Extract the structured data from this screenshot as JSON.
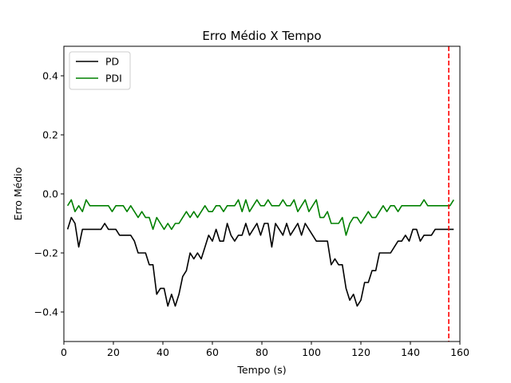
{
  "chart_data": {
    "type": "line",
    "title": "Erro Médio X Tempo",
    "xlabel": "Tempo (s)",
    "ylabel": "Erro Médio",
    "xlim": [
      0,
      160
    ],
    "ylim": [
      -0.5,
      0.5
    ],
    "xticks": [
      0,
      20,
      40,
      60,
      80,
      100,
      120,
      140,
      160
    ],
    "yticks": [
      -0.4,
      -0.2,
      0.0,
      0.2,
      0.4
    ],
    "xtick_labels": [
      "0",
      "20",
      "40",
      "60",
      "80",
      "100",
      "120",
      "140",
      "160"
    ],
    "ytick_labels": [
      "−0.4",
      "−0.2",
      "0.0",
      "0.2",
      "0.4"
    ],
    "grid": false,
    "legend": "top-left",
    "x": [
      1.5,
      3,
      4.5,
      6,
      7.5,
      9,
      10.5,
      12,
      13.5,
      15,
      16.5,
      18,
      19.5,
      21,
      22.5,
      24,
      25.5,
      27,
      28.5,
      30,
      31.5,
      33,
      34.5,
      36,
      37.5,
      39,
      40.5,
      42,
      43.5,
      45,
      46.5,
      48,
      49.5,
      51,
      52.5,
      54,
      55.5,
      57,
      58.5,
      60,
      61.5,
      63,
      64.5,
      66,
      67.5,
      69,
      70.5,
      72,
      73.5,
      75,
      76.5,
      78,
      79.5,
      81,
      82.5,
      84,
      85.5,
      87,
      88.5,
      90,
      91.5,
      93,
      94.5,
      96,
      97.5,
      99,
      100.5,
      102,
      103.5,
      105,
      106.5,
      108,
      109.5,
      111,
      112.5,
      114,
      115.5,
      117,
      118.5,
      120,
      121.5,
      123,
      124.5,
      126,
      127.5,
      129,
      130.5,
      132,
      133.5,
      135,
      136.5,
      138,
      139.5,
      141,
      142.5,
      144,
      145.5,
      147,
      148.5,
      150,
      151.5,
      153,
      154.5,
      156,
      157.5
    ],
    "series": [
      {
        "name": "PD",
        "color": "#000000",
        "values": [
          -0.12,
          -0.08,
          -0.1,
          -0.18,
          -0.12,
          -0.12,
          -0.12,
          -0.12,
          -0.12,
          -0.12,
          -0.1,
          -0.12,
          -0.12,
          -0.12,
          -0.14,
          -0.14,
          -0.14,
          -0.14,
          -0.16,
          -0.2,
          -0.2,
          -0.2,
          -0.24,
          -0.24,
          -0.34,
          -0.32,
          -0.32,
          -0.38,
          -0.34,
          -0.38,
          -0.34,
          -0.28,
          -0.26,
          -0.2,
          -0.22,
          -0.2,
          -0.22,
          -0.18,
          -0.14,
          -0.16,
          -0.12,
          -0.16,
          -0.16,
          -0.1,
          -0.14,
          -0.16,
          -0.14,
          -0.14,
          -0.1,
          -0.14,
          -0.12,
          -0.1,
          -0.14,
          -0.1,
          -0.1,
          -0.18,
          -0.1,
          -0.12,
          -0.14,
          -0.1,
          -0.14,
          -0.12,
          -0.1,
          -0.14,
          -0.1,
          -0.12,
          -0.14,
          -0.16,
          -0.16,
          -0.16,
          -0.16,
          -0.24,
          -0.22,
          -0.24,
          -0.24,
          -0.32,
          -0.36,
          -0.34,
          -0.38,
          -0.36,
          -0.3,
          -0.3,
          -0.26,
          -0.26,
          -0.2,
          -0.2,
          -0.2,
          -0.2,
          -0.18,
          -0.16,
          -0.16,
          -0.14,
          -0.16,
          -0.12,
          -0.12,
          -0.16,
          -0.14,
          -0.14,
          -0.14,
          -0.12,
          -0.12,
          -0.12,
          -0.12,
          -0.12,
          -0.12
        ]
      },
      {
        "name": "PDI",
        "color": "#008000",
        "values": [
          -0.04,
          -0.02,
          -0.06,
          -0.04,
          -0.06,
          -0.02,
          -0.04,
          -0.04,
          -0.04,
          -0.04,
          -0.04,
          -0.04,
          -0.06,
          -0.04,
          -0.04,
          -0.04,
          -0.06,
          -0.04,
          -0.06,
          -0.08,
          -0.06,
          -0.08,
          -0.08,
          -0.12,
          -0.08,
          -0.1,
          -0.12,
          -0.1,
          -0.12,
          -0.1,
          -0.1,
          -0.08,
          -0.06,
          -0.08,
          -0.06,
          -0.08,
          -0.06,
          -0.04,
          -0.06,
          -0.06,
          -0.04,
          -0.04,
          -0.06,
          -0.04,
          -0.04,
          -0.04,
          -0.02,
          -0.06,
          -0.02,
          -0.06,
          -0.04,
          -0.02,
          -0.04,
          -0.04,
          -0.02,
          -0.04,
          -0.04,
          -0.04,
          -0.02,
          -0.04,
          -0.04,
          -0.02,
          -0.06,
          -0.04,
          -0.02,
          -0.06,
          -0.04,
          -0.02,
          -0.08,
          -0.08,
          -0.06,
          -0.1,
          -0.1,
          -0.1,
          -0.08,
          -0.14,
          -0.1,
          -0.08,
          -0.08,
          -0.1,
          -0.08,
          -0.06,
          -0.08,
          -0.08,
          -0.06,
          -0.04,
          -0.06,
          -0.04,
          -0.04,
          -0.06,
          -0.04,
          -0.04,
          -0.04,
          -0.04,
          -0.04,
          -0.04,
          -0.02,
          -0.04,
          -0.04,
          -0.04,
          -0.04,
          -0.04,
          -0.04,
          -0.04,
          -0.02
        ]
      }
    ],
    "vline": {
      "x": 155.5,
      "color": "#ff0000",
      "style": "dashed"
    }
  }
}
